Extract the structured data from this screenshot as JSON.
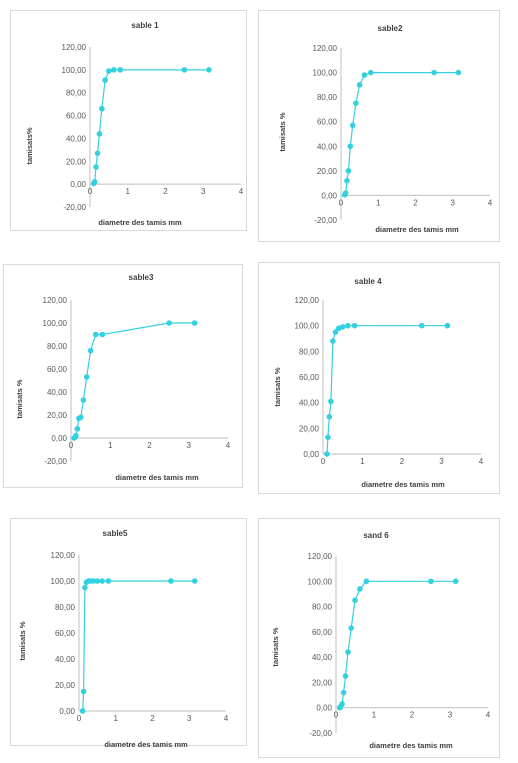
{
  "colors": {
    "series": "#33d1e0",
    "axis": "#bfbfbf",
    "text": "#595959"
  },
  "chart_data": [
    {
      "type": "scatter",
      "title": "sable 1",
      "xlabel": "diametre des tamis mm",
      "ylabel": "tamisats%",
      "xlim": [
        0,
        4
      ],
      "ylim": [
        -20,
        120
      ],
      "xticks": [
        "0",
        "1",
        "2",
        "3",
        "4"
      ],
      "yticks": [
        "-20,00",
        "0,00",
        "20,00",
        "40,00",
        "60,00",
        "80,00",
        "100,00",
        "120,00"
      ],
      "grid": false,
      "x": [
        0.1,
        0.125,
        0.16,
        0.2,
        0.25,
        0.315,
        0.4,
        0.5,
        0.63,
        0.8,
        2.5,
        3.15
      ],
      "y": [
        0.5,
        2,
        15,
        27,
        44,
        66,
        91,
        99,
        100,
        100,
        100,
        100
      ]
    },
    {
      "type": "scatter",
      "title": "sable2",
      "xlabel": "diametre des tamis mm",
      "ylabel": "tamisats %",
      "xlim": [
        0,
        4
      ],
      "ylim": [
        -20,
        120
      ],
      "xticks": [
        "0",
        "1",
        "2",
        "3",
        "4"
      ],
      "yticks": [
        "-20,00",
        "0,00",
        "20,00",
        "40,00",
        "60,00",
        "80,00",
        "100,00",
        "120,00"
      ],
      "grid": false,
      "x": [
        0.1,
        0.125,
        0.16,
        0.2,
        0.25,
        0.315,
        0.4,
        0.5,
        0.63,
        0.8,
        2.5,
        3.15
      ],
      "y": [
        0.5,
        2,
        12,
        20,
        40,
        57,
        75,
        90,
        98,
        100,
        100,
        100
      ]
    },
    {
      "type": "scatter",
      "title": "sable3",
      "xlabel": "diametre des tamis mm",
      "ylabel": "tamisats %",
      "xlim": [
        0,
        4
      ],
      "ylim": [
        -20,
        120
      ],
      "xticks": [
        "0",
        "1",
        "2",
        "3",
        "4"
      ],
      "yticks": [
        "-20,00",
        "0,00",
        "20,00",
        "40,00",
        "60,00",
        "80,00",
        "100,00",
        "120,00"
      ],
      "grid": false,
      "x": [
        0.08,
        0.1,
        0.125,
        0.16,
        0.2,
        0.25,
        0.315,
        0.4,
        0.5,
        0.63,
        0.8,
        2.5,
        3.15
      ],
      "y": [
        0,
        0.5,
        2,
        8,
        17,
        18,
        33,
        53,
        76,
        90,
        90,
        100,
        100
      ]
    },
    {
      "type": "scatter",
      "title": "sable 4",
      "xlabel": "diametre des tamis mm",
      "ylabel": "tamisats %",
      "xlim": [
        0,
        4
      ],
      "ylim": [
        0,
        120
      ],
      "xticks": [
        "0",
        "1",
        "2",
        "3",
        "4"
      ],
      "yticks": [
        "0,00",
        "20,00",
        "40,00",
        "60,00",
        "80,00",
        "100,00",
        "120,00"
      ],
      "grid": false,
      "x": [
        0.1,
        0.125,
        0.16,
        0.2,
        0.25,
        0.315,
        0.4,
        0.5,
        0.63,
        0.8,
        2.5,
        3.15
      ],
      "y": [
        0,
        13,
        29,
        41,
        88,
        95,
        98,
        99,
        100,
        100,
        100,
        100
      ]
    },
    {
      "type": "scatter",
      "title": "sable5",
      "xlabel": "diametre des tamis mm",
      "ylabel": "tamisats %",
      "xlim": [
        0,
        4
      ],
      "ylim": [
        0,
        120
      ],
      "xticks": [
        "0",
        "1",
        "2",
        "3",
        "4"
      ],
      "yticks": [
        "0,00",
        "20,00",
        "40,00",
        "60,00",
        "80,00",
        "100,00",
        "120,00"
      ],
      "grid": false,
      "x": [
        0.1,
        0.125,
        0.16,
        0.2,
        0.25,
        0.315,
        0.4,
        0.5,
        0.63,
        0.8,
        2.5,
        3.15
      ],
      "y": [
        0,
        15,
        95,
        99,
        100,
        100,
        100,
        100,
        100,
        100,
        100,
        100
      ]
    },
    {
      "type": "scatter",
      "title": "sand 6",
      "xlabel": "diametre des tamis mm",
      "ylabel": "tamisats %",
      "xlim": [
        0,
        4
      ],
      "ylim": [
        -20,
        120
      ],
      "xticks": [
        "0",
        "1",
        "2",
        "3",
        "4"
      ],
      "yticks": [
        "-20,00",
        "0,00",
        "20,00",
        "40,00",
        "60,00",
        "80,00",
        "100,00",
        "120,00"
      ],
      "grid": false,
      "x": [
        0.1,
        0.125,
        0.16,
        0.2,
        0.25,
        0.315,
        0.4,
        0.5,
        0.63,
        0.8,
        2.5,
        3.15
      ],
      "y": [
        0,
        1,
        3,
        12,
        25,
        44,
        63,
        85,
        94,
        100,
        100,
        100
      ]
    }
  ]
}
